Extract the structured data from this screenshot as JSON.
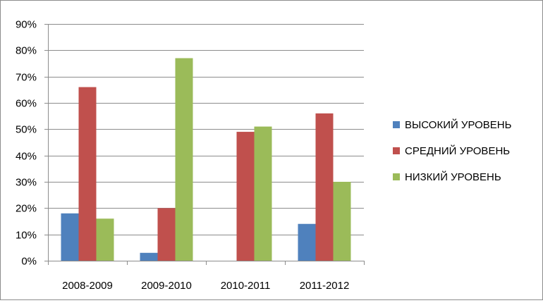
{
  "chart_data": {
    "type": "bar",
    "categories": [
      "2008-2009",
      "2009-2010",
      "2010-2011",
      "2011-2012"
    ],
    "series": [
      {
        "name": "ВЫСОКИЙ УРОВЕНЬ",
        "color": "#4F81BD",
        "values": [
          18,
          3,
          0,
          14
        ]
      },
      {
        "name": "СРЕДНИЙ УРОВЕНЬ",
        "color": "#C0504D",
        "values": [
          66,
          20,
          49,
          56
        ]
      },
      {
        "name": "НИЗКИЙ УРОВЕНЬ",
        "color": "#9BBB59",
        "values": [
          16,
          77,
          51,
          30
        ]
      }
    ],
    "ylim": [
      0,
      90
    ],
    "yticks": [
      0,
      10,
      20,
      30,
      40,
      50,
      60,
      70,
      80,
      90
    ],
    "ytick_labels": [
      "0%",
      "10%",
      "20%",
      "30%",
      "40%",
      "50%",
      "60%",
      "70%",
      "80%",
      "90%"
    ],
    "grid": true,
    "legend_position": "right"
  }
}
